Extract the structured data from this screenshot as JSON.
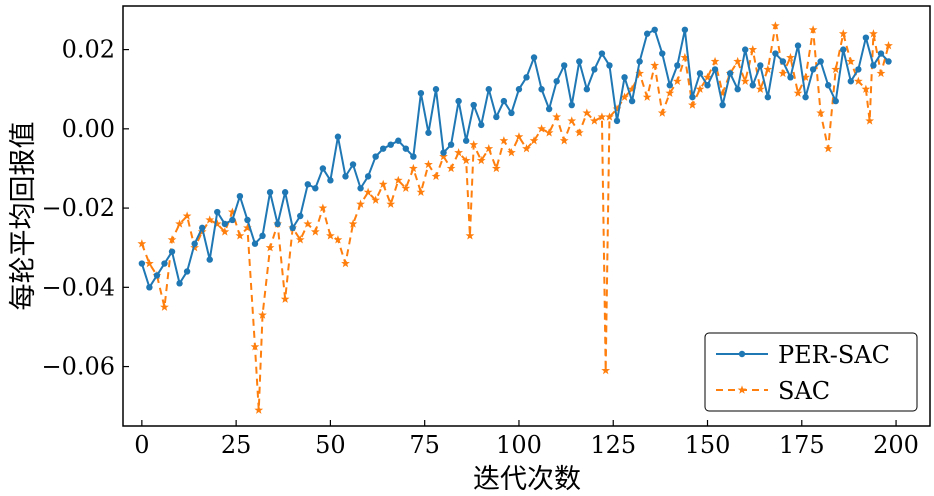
{
  "chart_data": {
    "type": "line",
    "title": "",
    "xlabel": "迭代次数",
    "ylabel": "每轮平均回报值",
    "xlim": [
      -5,
      209
    ],
    "ylim": [
      -0.075,
      0.031
    ],
    "xticks": [
      0,
      25,
      50,
      75,
      100,
      125,
      150,
      175,
      200
    ],
    "yticks": [
      -0.06,
      -0.04,
      -0.02,
      0.0,
      0.02
    ],
    "xtick_labels": [
      "0",
      "25",
      "50",
      "75",
      "100",
      "125",
      "150",
      "175",
      "200"
    ],
    "ytick_labels": [
      "−0.06",
      "−0.04",
      "−0.02",
      "0.00",
      "0.02"
    ],
    "grid": false,
    "legend_position": "lower-right",
    "series": [
      {
        "name": "PER-SAC",
        "color": "#1f77b4",
        "marker": "circle",
        "linestyle": "solid",
        "x": [
          0,
          2,
          4,
          6,
          8,
          10,
          12,
          14,
          16,
          18,
          20,
          22,
          24,
          26,
          28,
          30,
          32,
          34,
          36,
          38,
          40,
          42,
          44,
          46,
          48,
          50,
          52,
          54,
          56,
          58,
          60,
          62,
          64,
          66,
          68,
          70,
          72,
          74,
          76,
          78,
          80,
          82,
          84,
          86,
          88,
          90,
          92,
          94,
          96,
          98,
          100,
          102,
          104,
          106,
          108,
          110,
          112,
          114,
          116,
          118,
          120,
          122,
          124,
          126,
          128,
          130,
          132,
          134,
          136,
          138,
          140,
          142,
          144,
          146,
          148,
          150,
          152,
          154,
          156,
          158,
          160,
          162,
          164,
          166,
          168,
          170,
          172,
          174,
          176,
          178,
          180,
          182,
          184,
          186,
          188,
          190,
          192,
          194,
          196,
          198
        ],
        "values": [
          -0.034,
          -0.04,
          -0.037,
          -0.034,
          -0.031,
          -0.039,
          -0.036,
          -0.029,
          -0.025,
          -0.033,
          -0.021,
          -0.024,
          -0.023,
          -0.017,
          -0.023,
          -0.029,
          -0.027,
          -0.016,
          -0.024,
          -0.016,
          -0.025,
          -0.022,
          -0.014,
          -0.015,
          -0.01,
          -0.013,
          -0.002,
          -0.012,
          -0.009,
          -0.015,
          -0.012,
          -0.007,
          -0.005,
          -0.004,
          -0.003,
          -0.005,
          -0.007,
          0.009,
          -0.001,
          0.01,
          -0.006,
          -0.004,
          0.007,
          -0.003,
          0.006,
          0.001,
          0.01,
          0.003,
          0.007,
          0.004,
          0.01,
          0.013,
          0.018,
          0.01,
          0.005,
          0.012,
          0.016,
          0.006,
          0.017,
          0.01,
          0.015,
          0.019,
          0.016,
          0.002,
          0.013,
          0.007,
          0.017,
          0.024,
          0.025,
          0.019,
          0.011,
          0.016,
          0.025,
          0.008,
          0.014,
          0.011,
          0.015,
          0.006,
          0.014,
          0.01,
          0.02,
          0.011,
          0.016,
          0.008,
          0.019,
          0.017,
          0.013,
          0.021,
          0.008,
          0.015,
          0.017,
          0.011,
          0.007,
          0.02,
          0.012,
          0.015,
          0.023,
          0.016,
          0.019,
          0.017
        ]
      },
      {
        "name": "SAC",
        "color": "#ff7f0e",
        "marker": "star",
        "linestyle": "dashed",
        "x": [
          0,
          2,
          4,
          6,
          8,
          10,
          12,
          14,
          16,
          18,
          20,
          22,
          24,
          26,
          28,
          30,
          31,
          32,
          34,
          36,
          38,
          40,
          42,
          44,
          46,
          48,
          50,
          52,
          54,
          56,
          58,
          60,
          62,
          64,
          66,
          68,
          70,
          72,
          74,
          76,
          78,
          80,
          82,
          84,
          86,
          87,
          88,
          90,
          92,
          94,
          96,
          98,
          100,
          102,
          104,
          106,
          108,
          110,
          112,
          114,
          116,
          118,
          120,
          122,
          123,
          124,
          126,
          128,
          130,
          132,
          134,
          136,
          138,
          140,
          142,
          144,
          146,
          148,
          150,
          152,
          154,
          156,
          158,
          160,
          162,
          164,
          166,
          168,
          170,
          172,
          174,
          176,
          178,
          180,
          182,
          184,
          186,
          188,
          190,
          192,
          193,
          194,
          196,
          198
        ],
        "values": [
          -0.029,
          -0.034,
          -0.037,
          -0.045,
          -0.028,
          -0.024,
          -0.022,
          -0.03,
          -0.026,
          -0.023,
          -0.024,
          -0.026,
          -0.021,
          -0.027,
          -0.025,
          -0.055,
          -0.071,
          -0.047,
          -0.03,
          -0.024,
          -0.043,
          -0.025,
          -0.028,
          -0.024,
          -0.026,
          -0.02,
          -0.027,
          -0.028,
          -0.034,
          -0.024,
          -0.019,
          -0.016,
          -0.018,
          -0.014,
          -0.019,
          -0.013,
          -0.015,
          -0.01,
          -0.016,
          -0.009,
          -0.012,
          -0.007,
          -0.01,
          -0.006,
          -0.008,
          -0.027,
          -0.004,
          -0.008,
          -0.005,
          -0.01,
          -0.003,
          -0.006,
          -0.002,
          -0.005,
          -0.003,
          0.0,
          -0.001,
          0.003,
          -0.003,
          0.002,
          -0.001,
          0.004,
          0.002,
          0.003,
          -0.061,
          0.003,
          0.005,
          0.008,
          0.01,
          0.014,
          0.008,
          0.016,
          0.004,
          0.009,
          0.012,
          0.018,
          0.006,
          0.01,
          0.013,
          0.017,
          0.009,
          0.014,
          0.017,
          0.012,
          0.02,
          0.01,
          0.015,
          0.026,
          0.014,
          0.018,
          0.009,
          0.013,
          0.025,
          0.004,
          -0.005,
          0.015,
          0.024,
          0.017,
          0.012,
          0.01,
          0.002,
          0.024,
          0.014,
          0.021
        ]
      }
    ]
  }
}
